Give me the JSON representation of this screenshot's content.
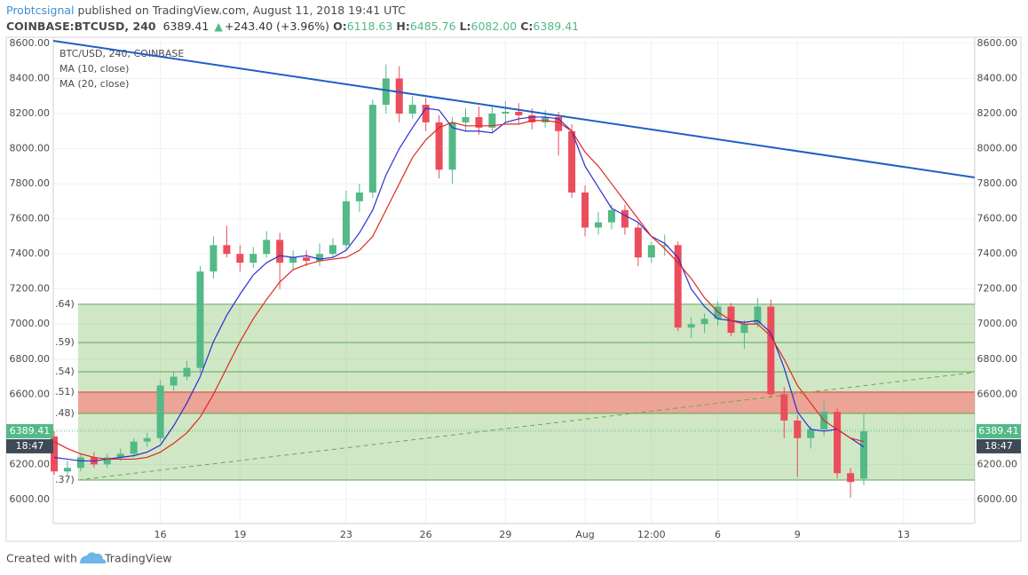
{
  "header": {
    "author": "Probtcsignal",
    "published": "published on TradingView.com, August 11, 2018 19:41 UTC",
    "symbol": "COINBASE:BTCUSD, 240",
    "last": "6389.41",
    "arrow": "▲",
    "change": "+243.40 (+3.96%)",
    "quote": [
      {
        "key": "O:",
        "value": "6118.63"
      },
      {
        "key": "H:",
        "value": "6485.76"
      },
      {
        "key": "L:",
        "value": "6082.00"
      },
      {
        "key": "C:",
        "value": "6389.41"
      }
    ]
  },
  "chart_data": {
    "type": "candlestick",
    "title": "BTC/USD, 240, COINBASE",
    "up_color": "#53b987",
    "down_color": "#eb4d5c",
    "candles": [
      [
        6360,
        6390,
        6140,
        6160
      ],
      [
        6160,
        6220,
        6130,
        6180
      ],
      [
        6180,
        6260,
        6160,
        6240
      ],
      [
        6240,
        6270,
        6180,
        6200
      ],
      [
        6200,
        6260,
        6180,
        6240
      ],
      [
        6240,
        6290,
        6220,
        6260
      ],
      [
        6260,
        6350,
        6240,
        6330
      ],
      [
        6330,
        6380,
        6300,
        6350
      ],
      [
        6350,
        6680,
        6330,
        6650
      ],
      [
        6650,
        6730,
        6620,
        6700
      ],
      [
        6700,
        6790,
        6680,
        6750
      ],
      [
        6750,
        7330,
        6720,
        7300
      ],
      [
        7300,
        7500,
        7260,
        7450
      ],
      [
        7450,
        7560,
        7380,
        7400
      ],
      [
        7400,
        7450,
        7300,
        7350
      ],
      [
        7350,
        7440,
        7320,
        7400
      ],
      [
        7400,
        7530,
        7380,
        7480
      ],
      [
        7480,
        7520,
        7200,
        7350
      ],
      [
        7350,
        7420,
        7310,
        7380
      ],
      [
        7380,
        7420,
        7330,
        7360
      ],
      [
        7360,
        7460,
        7330,
        7400
      ],
      [
        7400,
        7490,
        7380,
        7450
      ],
      [
        7450,
        7760,
        7420,
        7700
      ],
      [
        7700,
        7800,
        7640,
        7750
      ],
      [
        7750,
        8280,
        7720,
        8250
      ],
      [
        8250,
        8480,
        8200,
        8400
      ],
      [
        8400,
        8470,
        8150,
        8200
      ],
      [
        8200,
        8300,
        8170,
        8250
      ],
      [
        8250,
        8290,
        8100,
        8150
      ],
      [
        8150,
        8190,
        7830,
        7880
      ],
      [
        7880,
        8180,
        7800,
        8150
      ],
      [
        8150,
        8230,
        8100,
        8180
      ],
      [
        8180,
        8240,
        8080,
        8120
      ],
      [
        8120,
        8240,
        8090,
        8200
      ],
      [
        8200,
        8270,
        8150,
        8210
      ],
      [
        8210,
        8260,
        8140,
        8190
      ],
      [
        8190,
        8230,
        8110,
        8150
      ],
      [
        8150,
        8220,
        8120,
        8180
      ],
      [
        8180,
        8210,
        7960,
        8100
      ],
      [
        8100,
        8140,
        7720,
        7750
      ],
      [
        7750,
        7790,
        7500,
        7550
      ],
      [
        7550,
        7640,
        7510,
        7580
      ],
      [
        7580,
        7680,
        7540,
        7650
      ],
      [
        7650,
        7680,
        7510,
        7550
      ],
      [
        7550,
        7580,
        7330,
        7380
      ],
      [
        7380,
        7470,
        7350,
        7450
      ],
      [
        7450,
        7510,
        7390,
        7450
      ],
      [
        7450,
        7470,
        6960,
        6980
      ],
      [
        6980,
        7040,
        6920,
        7000
      ],
      [
        7000,
        7060,
        6950,
        7030
      ],
      [
        7030,
        7130,
        6990,
        7100
      ],
      [
        7100,
        7120,
        6930,
        6950
      ],
      [
        6950,
        7020,
        6860,
        7000
      ],
      [
        7000,
        7150,
        6980,
        7100
      ],
      [
        7100,
        7140,
        6580,
        6600
      ],
      [
        6600,
        6640,
        6350,
        6450
      ],
      [
        6450,
        6480,
        6130,
        6350
      ],
      [
        6350,
        6420,
        6290,
        6400
      ],
      [
        6400,
        6560,
        6360,
        6500
      ],
      [
        6500,
        6520,
        6120,
        6150
      ],
      [
        6150,
        6180,
        6010,
        6100
      ],
      [
        6118.63,
        6485.76,
        6082,
        6389.41
      ]
    ],
    "series": [
      {
        "name": "MA (10, close)",
        "color": "#2d2dd2",
        "values": [
          6240,
          6230,
          6220,
          6220,
          6230,
          6240,
          6250,
          6270,
          6310,
          6420,
          6550,
          6700,
          6900,
          7050,
          7170,
          7280,
          7350,
          7390,
          7380,
          7390,
          7370,
          7380,
          7420,
          7520,
          7650,
          7850,
          8000,
          8120,
          8230,
          8220,
          8120,
          8100,
          8100,
          8090,
          8150,
          8170,
          8180,
          8180,
          8170,
          8100,
          7900,
          7780,
          7660,
          7620,
          7580,
          7500,
          7460,
          7380,
          7200,
          7100,
          7030,
          7020,
          7010,
          7020,
          6950,
          6750,
          6500,
          6400,
          6390,
          6400,
          6350,
          6300
        ]
      },
      {
        "name": "MA (20, close)",
        "color": "#e0281f",
        "values": [
          6330,
          6290,
          6260,
          6240,
          6230,
          6230,
          6230,
          6240,
          6270,
          6320,
          6380,
          6470,
          6600,
          6750,
          6900,
          7030,
          7140,
          7240,
          7310,
          7340,
          7360,
          7370,
          7380,
          7420,
          7500,
          7650,
          7800,
          7950,
          8050,
          8120,
          8150,
          8130,
          8130,
          8130,
          8140,
          8140,
          8160,
          8160,
          8150,
          8100,
          7980,
          7900,
          7800,
          7700,
          7600,
          7500,
          7430,
          7350,
          7260,
          7150,
          7070,
          7020,
          7000,
          7000,
          6930,
          6800,
          6650,
          6550,
          6450,
          6400,
          6350,
          6330
        ]
      }
    ],
    "ylim": [
      5863,
      8635
    ],
    "yticks": [
      {
        "value": 6000,
        "label": "6000.00"
      },
      {
        "value": 6200,
        "label": "6200.00"
      },
      {
        "value": 6400,
        "label": "6400.00"
      },
      {
        "value": 6600,
        "label": "6600.00"
      },
      {
        "value": 6800,
        "label": "6800.00"
      },
      {
        "value": 7000,
        "label": "7000.00"
      },
      {
        "value": 7200,
        "label": "7200.00"
      },
      {
        "value": 7400,
        "label": "7400.00"
      },
      {
        "value": 7600,
        "label": "7600.00"
      },
      {
        "value": 7800,
        "label": "7800.00"
      },
      {
        "value": 8000,
        "label": "8000.00"
      },
      {
        "value": 8200,
        "label": "8200.00"
      },
      {
        "value": 8400,
        "label": "8400.00"
      },
      {
        "value": 8600,
        "label": "8600.00"
      }
    ],
    "xlim": [
      -0.07,
      69.36
    ],
    "xticks": [
      {
        "value": 8,
        "label": "16"
      },
      {
        "value": 14,
        "label": "19"
      },
      {
        "value": 22,
        "label": "23"
      },
      {
        "value": 28,
        "label": "26"
      },
      {
        "value": 34,
        "label": "29"
      },
      {
        "value": 40,
        "label": "Aug"
      },
      {
        "value": 45,
        "label": "12:00"
      },
      {
        "value": 50,
        "label": "6"
      },
      {
        "value": 56,
        "label": "9"
      },
      {
        "value": 64,
        "label": "13"
      }
    ],
    "grid": true,
    "fib_start": 1.8,
    "fib_levels": [
      {
        "value": 7113,
        "label": ".64)"
      },
      {
        "value": 6895,
        "label": ".59)"
      },
      {
        "value": 6728,
        "label": ".54)"
      },
      {
        "value": 6612,
        "label": ".51)",
        "color": "#e03c3c"
      },
      {
        "value": 6491,
        "label": ".48)"
      },
      {
        "value": 6111,
        "label": ".37)"
      }
    ],
    "zones": [
      {
        "from": 6111,
        "to": 7113,
        "color": "rgba(120,185,90,0.35)"
      },
      {
        "from": 6491,
        "to": 6612,
        "color": "rgba(255,120,120,0.6)"
      }
    ],
    "trendlines": [
      {
        "color": "#1f5fc4",
        "dashed": false,
        "points": [
          [
            -0.07,
            8615
          ],
          [
            69.36,
            7836
          ]
        ]
      },
      {
        "color": "#6aa84f",
        "dashed": true,
        "points": [
          [
            1.8,
            6111
          ],
          [
            69.36,
            6725
          ]
        ]
      }
    ],
    "last_price": {
      "value": 6389.41,
      "time": "18:47"
    }
  },
  "footer": {
    "created": "Created with",
    "brand": "TradingView"
  }
}
